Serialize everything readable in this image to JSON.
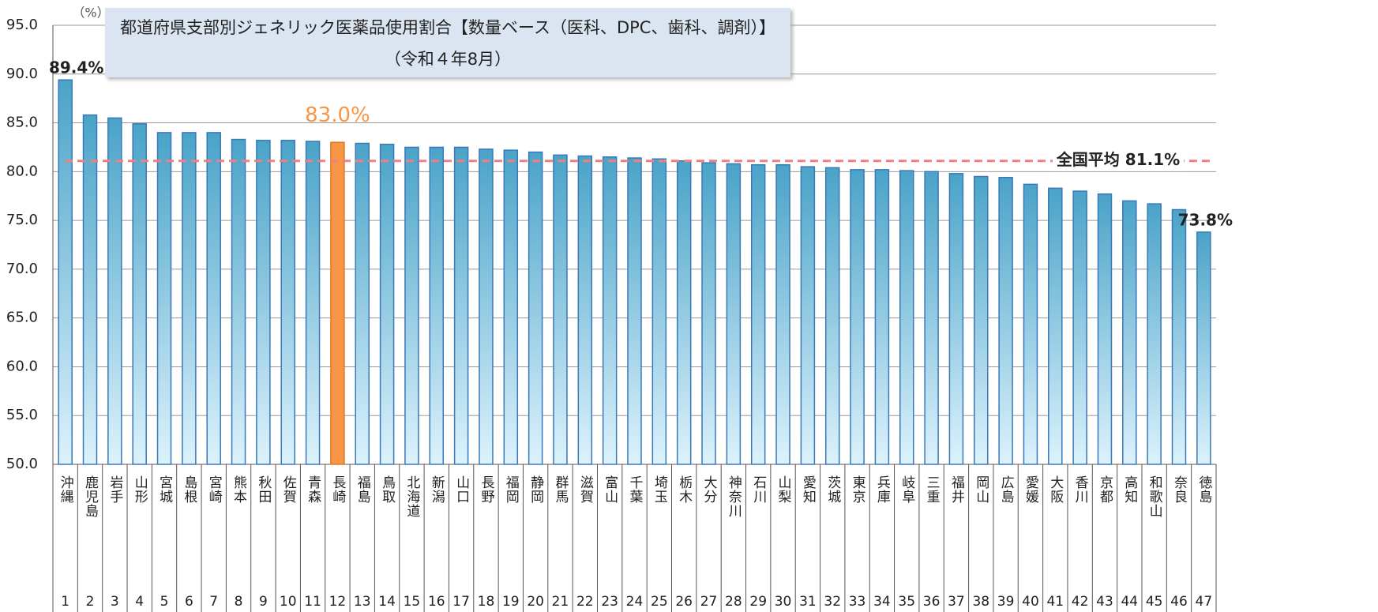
{
  "chart_data": {
    "type": "bar",
    "title": "都道府県支部別ジェネリック医薬品使用割合【数量ベース（医科、DPC、歯科、調剤）】",
    "subtitle": "（令和４年8月）",
    "y_unit": "（%）",
    "categories": [
      "沖縄",
      "鹿児島",
      "岩手",
      "山形",
      "宮城",
      "島根",
      "宮崎",
      "熊本",
      "秋田",
      "佐賀",
      "青森",
      "長崎",
      "福島",
      "鳥取",
      "北海道",
      "新潟",
      "山口",
      "長野",
      "福岡",
      "静岡",
      "群馬",
      "滋賀",
      "富山",
      "千葉",
      "埼玉",
      "栃木",
      "大分",
      "神奈川",
      "石川",
      "山梨",
      "愛知",
      "茨城",
      "東京",
      "兵庫",
      "岐阜",
      "三重",
      "福井",
      "岡山",
      "広島",
      "愛媛",
      "大阪",
      "香川",
      "京都",
      "高知",
      "和歌山",
      "奈良",
      "徳島"
    ],
    "ranks": [
      1,
      2,
      3,
      4,
      5,
      6,
      7,
      8,
      9,
      10,
      11,
      12,
      13,
      14,
      15,
      16,
      17,
      18,
      19,
      20,
      21,
      22,
      23,
      24,
      25,
      26,
      27,
      28,
      29,
      30,
      31,
      32,
      33,
      34,
      35,
      36,
      37,
      38,
      39,
      40,
      41,
      42,
      43,
      44,
      45,
      46,
      47
    ],
    "values": [
      89.4,
      85.8,
      85.5,
      84.9,
      84.0,
      84.0,
      84.0,
      83.3,
      83.2,
      83.2,
      83.1,
      83.0,
      82.9,
      82.8,
      82.5,
      82.5,
      82.5,
      82.3,
      82.2,
      82.0,
      81.7,
      81.6,
      81.5,
      81.4,
      81.3,
      81.1,
      80.9,
      80.8,
      80.7,
      80.7,
      80.5,
      80.4,
      80.2,
      80.2,
      80.1,
      80.0,
      79.8,
      79.5,
      79.4,
      78.7,
      78.3,
      78.0,
      77.7,
      77.0,
      76.7,
      76.1,
      73.8
    ],
    "value_labels": [
      "89.4%",
      null,
      null,
      null,
      null,
      null,
      null,
      null,
      null,
      null,
      null,
      "83.0%",
      null,
      null,
      null,
      null,
      null,
      null,
      null,
      null,
      null,
      null,
      null,
      null,
      null,
      null,
      null,
      null,
      null,
      null,
      null,
      null,
      null,
      null,
      null,
      null,
      null,
      null,
      null,
      null,
      null,
      null,
      null,
      null,
      null,
      null,
      "73.8%"
    ],
    "color": "#4fa8cc",
    "highlight": "長崎",
    "highlight_color": "#f79646",
    "average": {
      "label": "全国平均 81.1%",
      "value": 81.1,
      "color": "#f07f7f"
    },
    "ylim": [
      50,
      95
    ],
    "yticks": [
      {
        "value": 50,
        "label": "50.0"
      },
      {
        "value": 55,
        "label": "55.0"
      },
      {
        "value": 60,
        "label": "60.0"
      },
      {
        "value": 65,
        "label": "65.0"
      },
      {
        "value": 70,
        "label": "70.0"
      },
      {
        "value": 75,
        "label": "75.0"
      },
      {
        "value": 80,
        "label": "80.0"
      },
      {
        "value": 85,
        "label": "85.0"
      },
      {
        "value": 90,
        "label": "90.0"
      },
      {
        "value": 95,
        "label": "95.0"
      }
    ],
    "grid": true
  }
}
